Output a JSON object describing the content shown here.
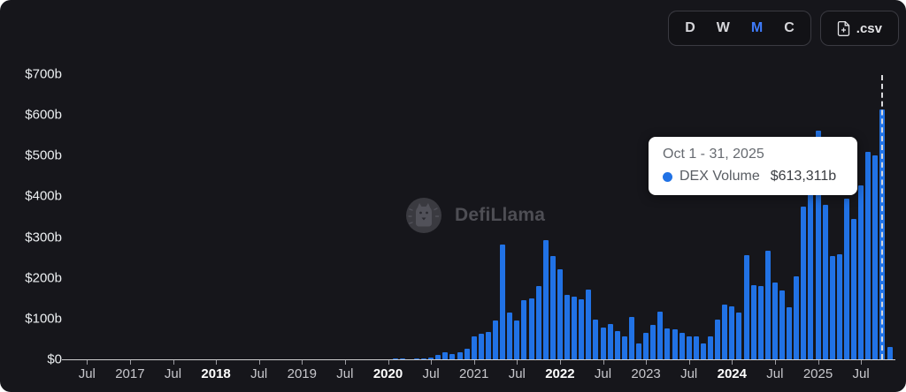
{
  "controls": {
    "intervals": [
      {
        "label": "D",
        "active": false
      },
      {
        "label": "W",
        "active": false
      },
      {
        "label": "M",
        "active": true
      },
      {
        "label": "C",
        "active": false
      }
    ],
    "active_color": "#3e7bfa",
    "csv_label": ".csv"
  },
  "tooltip": {
    "date_range": "Oct 1 - 31, 2025",
    "series_name": "DEX Volume",
    "value": "$613,311b",
    "dot_color": "#2172e5"
  },
  "watermark": {
    "text": "DefiLlama"
  },
  "chart_data": {
    "type": "bar",
    "title": "DEX Volume by month",
    "series_name": "DEX Volume",
    "unit": "billions USD",
    "bar_color": "#2172e5",
    "ylim": [
      0,
      700
    ],
    "y_tick_labels": [
      "$0",
      "$100b",
      "$200b",
      "$300b",
      "$400b",
      "$500b",
      "$600b",
      "$700b"
    ],
    "x_tick_labels": [
      "Jul",
      "2017",
      "Jul",
      "2018",
      "Jul",
      "2019",
      "Jul",
      "2020",
      "Jul",
      "2021",
      "Jul",
      "2022",
      "Jul",
      "2023",
      "Jul",
      "2024",
      "Jul",
      "2025",
      "Jul"
    ],
    "bold_x_tick_labels": [
      "2018",
      "2020",
      "2022",
      "2024"
    ],
    "grid": false,
    "legend": false,
    "start_month": "2016-04",
    "values_billions": [
      0,
      0,
      0,
      0,
      0,
      0,
      0.1,
      0.1,
      0.1,
      0.1,
      0.1,
      0.1,
      0.1,
      0.2,
      0.3,
      0.3,
      0.4,
      0.4,
      0.5,
      0.8,
      1,
      1,
      0.8,
      0.7,
      0.6,
      0.5,
      0.5,
      0.4,
      0.4,
      0.4,
      0.4,
      0.5,
      0.4,
      0.5,
      0.5,
      0.6,
      0.6,
      0.7,
      0.9,
      1,
      0.8,
      0.7,
      0.7,
      0.9,
      0.8,
      1,
      1.2,
      1.5,
      1,
      1.3,
      2,
      4.5,
      11,
      17,
      12,
      17,
      26,
      57,
      62,
      67,
      95,
      282,
      114,
      95,
      145,
      149,
      180,
      292,
      254,
      220,
      158,
      154,
      147,
      172,
      97,
      77,
      86,
      69,
      56,
      103,
      40,
      66,
      84,
      116,
      75,
      74,
      64,
      56,
      56,
      40,
      56,
      97,
      134,
      131,
      115,
      255,
      183,
      179,
      266,
      188,
      170,
      127,
      203,
      375,
      465,
      561,
      380,
      254,
      257,
      395,
      344,
      427,
      510,
      500,
      613.311,
      30
    ],
    "highlighted_month": "2025-10",
    "highlighted_value": 613.311
  }
}
